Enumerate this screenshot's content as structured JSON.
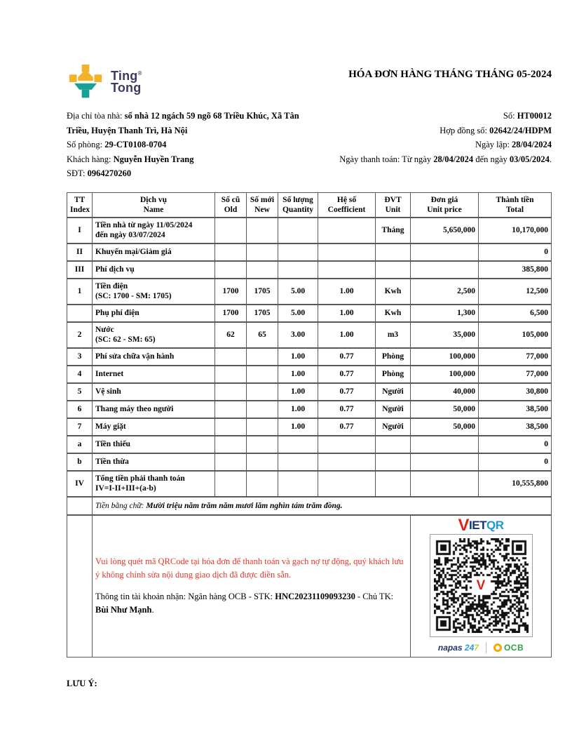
{
  "logo": {
    "line1": "Ting",
    "reg": "®",
    "line2": "Tong"
  },
  "title": "HÓA ĐƠN HÀNG THÁNG THÁNG 05-2024",
  "info_left": {
    "address_label": "Địa chỉ tòa nhà: ",
    "address_value": "số nhà 12 ngách 59 ngõ 68 Triều Khúc, Xã Tân Triều, Huyện Thanh Trì, Hà Nội",
    "room_label": "Số phòng: ",
    "room_value": "29-CT0108-0704",
    "customer_label": "Khách hàng: ",
    "customer_value": "Nguyễn Huyền Trang",
    "phone_label": "SĐT: ",
    "phone_value": "0964270260"
  },
  "info_right": {
    "number_label": "Số: ",
    "number_value": "HT00012",
    "contract_label": "Hợp đồng số: ",
    "contract_value": "02642/24/HDPM",
    "created_label": "Ngày lập: ",
    "created_value": "28/04/2024",
    "payment_label": "Ngày thanh toán: Từ ngày ",
    "payment_from": "28/04/2024",
    "payment_mid": " đến ngày ",
    "payment_to": "03/05/2024",
    "payment_end": "."
  },
  "table": {
    "headers": [
      {
        "vi": "TT",
        "en": "Index"
      },
      {
        "vi": "Dịch vụ",
        "en": "Name"
      },
      {
        "vi": "Số cũ",
        "en": "Old"
      },
      {
        "vi": "Số mới",
        "en": "New"
      },
      {
        "vi": "Số lượng",
        "en": "Quantity"
      },
      {
        "vi": "Hệ số",
        "en": "Coefficient"
      },
      {
        "vi": "ĐVT",
        "en": "Unit"
      },
      {
        "vi": "Đơn giá",
        "en": "Unit price"
      },
      {
        "vi": "Thành tiền",
        "en": "Total"
      }
    ],
    "rows": [
      {
        "idx": "I",
        "name": "Tiền nhà từ ngày 11/05/2024",
        "name2": "đến ngày 03/07/2024",
        "old": "",
        "new": "",
        "qty": "",
        "coef": "",
        "unit": "Tháng",
        "price": "5,650,000",
        "total": "10,170,000"
      },
      {
        "idx": "II",
        "name": "Khuyến mại/Giảm giá",
        "name2": "",
        "old": "",
        "new": "",
        "qty": "",
        "coef": "",
        "unit": "",
        "price": "",
        "total": "0"
      },
      {
        "idx": "III",
        "name": "Phí dịch vụ",
        "name2": "",
        "old": "",
        "new": "",
        "qty": "",
        "coef": "",
        "unit": "",
        "price": "",
        "total": "385,800"
      },
      {
        "idx": "1",
        "name": "Tiền điện",
        "name2": "(SC: 1700 - SM: 1705)",
        "old": "1700",
        "new": "1705",
        "qty": "5.00",
        "coef": "1.00",
        "unit": "Kwh",
        "price": "2,500",
        "total": "12,500"
      },
      {
        "idx": "",
        "name": "Phụ phí điện",
        "name2": "",
        "old": "1700",
        "new": "1705",
        "qty": "5.00",
        "coef": "1.00",
        "unit": "Kwh",
        "price": "1,300",
        "total": "6,500"
      },
      {
        "idx": "2",
        "name": "Nước",
        "name2": "(SC: 62 - SM: 65)",
        "old": "62",
        "new": "65",
        "qty": "3.00",
        "coef": "1.00",
        "unit": "m3",
        "price": "35,000",
        "total": "105,000"
      },
      {
        "idx": "3",
        "name": "Phí sửa chữa vận hành",
        "name2": "",
        "old": "",
        "new": "",
        "qty": "1.00",
        "coef": "0.77",
        "unit": "Phòng",
        "price": "100,000",
        "total": "77,000"
      },
      {
        "idx": "4",
        "name": "Internet",
        "name2": "",
        "old": "",
        "new": "",
        "qty": "1.00",
        "coef": "0.77",
        "unit": "Phòng",
        "price": "100,000",
        "total": "77,000"
      },
      {
        "idx": "5",
        "name": "Vệ sinh",
        "name2": "",
        "old": "",
        "new": "",
        "qty": "1.00",
        "coef": "0.77",
        "unit": "Người",
        "price": "40,000",
        "total": "30,800"
      },
      {
        "idx": "6",
        "name": "Thang máy theo người",
        "name2": "",
        "old": "",
        "new": "",
        "qty": "1.00",
        "coef": "0.77",
        "unit": "Người",
        "price": "50,000",
        "total": "38,500"
      },
      {
        "idx": "7",
        "name": "Máy giặt",
        "name2": "",
        "old": "",
        "new": "",
        "qty": "1.00",
        "coef": "0.77",
        "unit": "Người",
        "price": "50,000",
        "total": "38,500"
      },
      {
        "idx": "a",
        "name": "Tiền thiếu",
        "name2": "",
        "old": "",
        "new": "",
        "qty": "",
        "coef": "",
        "unit": "",
        "price": "",
        "total": "0"
      },
      {
        "idx": "b",
        "name": "Tiền thừa",
        "name2": "",
        "old": "",
        "new": "",
        "qty": "",
        "coef": "",
        "unit": "",
        "price": "",
        "total": "0"
      },
      {
        "idx": "IV",
        "name": "Tổng tiền phải thanh toán",
        "name2": "IV=I-II+III+(a-b)",
        "old": "",
        "new": "",
        "qty": "",
        "coef": "",
        "unit": "",
        "price": "",
        "total": "10,555,800"
      }
    ],
    "amount_in_words_label": "Tiền bằng chữ: ",
    "amount_in_words": "Mười triệu năm trăm năm mươi lăm nghìn tám trăm đồng."
  },
  "payment": {
    "note_red": "Vui lòng quét mã QRCode tại hóa đơn để thanh toán và gạch nợ tự động, quý khách lưu ý không chỉnh sửa nội dung giao dịch đã được điền sẵn.",
    "account_prefix": "Thông tin tài khoản nhận: Ngân hàng OCB - STK: ",
    "account_number": "HNC20231109093230",
    "account_mid": " - Chủ TK: ",
    "account_holder": "Bùi Như Mạnh",
    "account_end": ".",
    "vietqr_v": "V",
    "vietqr_iet": "IET",
    "vietqr_qr": "QR",
    "qr_center_mark": "V",
    "napas_name": "napas",
    "napas_24": "24",
    "napas_7": "7",
    "ocb_label": "OCB"
  },
  "footer_note": "LƯU Ý:",
  "colors": {
    "brand_navy": "#3f3963",
    "brand_yellow": "#f0b32a",
    "brand_teal": "#18a295",
    "note_red": "#e53529",
    "vietqr_red": "#e0241b",
    "vietqr_navy": "#14356e",
    "vietqr_blue": "#1d96d4",
    "ocb_orange": "#f7a800",
    "ocb_green": "#2f9e44",
    "table_border": "#595959"
  }
}
